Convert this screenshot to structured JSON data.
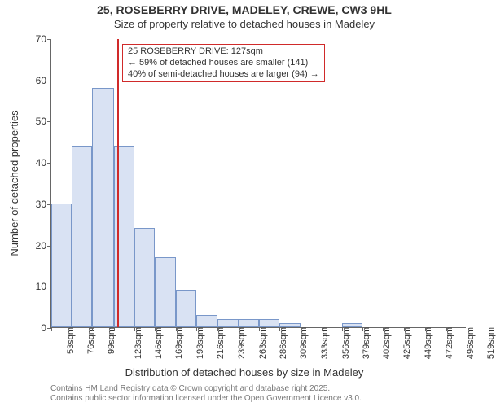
{
  "title_line1": "25, ROSEBERRY DRIVE, MADELEY, CREWE, CW3 9HL",
  "title_line2": "Size of property relative to detached houses in Madeley",
  "y_label": "Number of detached properties",
  "x_label": "Distribution of detached houses by size in Madeley",
  "footer_line1": "Contains HM Land Registry data © Crown copyright and database right 2025.",
  "footer_line2": "Contains public sector information licensed under the Open Government Licence v3.0.",
  "chart": {
    "type": "histogram",
    "ylim": [
      0,
      70
    ],
    "ytick_step": 10,
    "bar_fill": "#d9e2f3",
    "bar_border": "#7997c9",
    "background_color": "#ffffff",
    "axis_color": "#666666",
    "text_color": "#333333",
    "label_fontsize": 13,
    "tick_fontsize": 12,
    "xtick_suffix": "sqm",
    "x_bins": [
      53,
      76,
      99,
      123,
      146,
      169,
      193,
      216,
      239,
      263,
      286,
      309,
      333,
      356,
      379,
      402,
      425,
      449,
      472,
      496,
      519
    ],
    "values": [
      30,
      44,
      58,
      44,
      24,
      17,
      9,
      3,
      2,
      2,
      2,
      1,
      0,
      0,
      1,
      0,
      0,
      0,
      0,
      0
    ],
    "annotation": {
      "x_value": 127,
      "line_color": "#d02a2a",
      "box_border": "#d02a2a",
      "box_bg": "#ffffff",
      "line1": "25 ROSEBERRY DRIVE: 127sqm",
      "line2": "← 59% of detached houses are smaller (141)",
      "line3": "40% of semi-detached houses are larger (94) →"
    }
  }
}
